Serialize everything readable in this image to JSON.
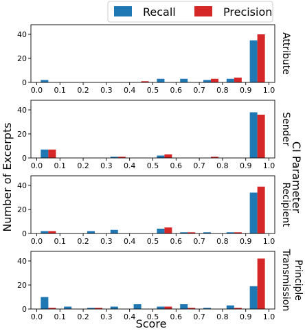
{
  "legend": {
    "items": [
      {
        "label": "Recall",
        "color": "#1f77b4"
      },
      {
        "label": "Precision",
        "color": "#d62728"
      }
    ]
  },
  "figure": {
    "ylabel": "Number of Excerpts",
    "xlabel": "Score",
    "right_label": "CI Parameter"
  },
  "chart_data": [
    {
      "type": "bar",
      "title": "Attribute",
      "title_lines": [
        "Attribute"
      ],
      "x": [
        0.05,
        0.15,
        0.25,
        0.35,
        0.45,
        0.55,
        0.65,
        0.75,
        0.85,
        0.95
      ],
      "series": [
        {
          "name": "Recall",
          "values": [
            2,
            0,
            0,
            0,
            0,
            3,
            3,
            2,
            3,
            35
          ]
        },
        {
          "name": "Precision",
          "values": [
            0,
            0,
            0,
            0,
            1,
            0,
            0,
            3,
            4,
            40
          ]
        }
      ],
      "xticks": [
        "0.0",
        "0.1",
        "0.2",
        "0.3",
        "0.4",
        "0.5",
        "0.6",
        "0.7",
        "0.8",
        "0.9",
        "1.0"
      ],
      "yticks": [
        0,
        20,
        40
      ],
      "xlim": [
        -0.025,
        1.025
      ],
      "ylim": [
        0,
        48
      ]
    },
    {
      "type": "bar",
      "title": "Sender",
      "title_lines": [
        "Sender"
      ],
      "x": [
        0.05,
        0.15,
        0.25,
        0.35,
        0.45,
        0.55,
        0.65,
        0.75,
        0.85,
        0.95
      ],
      "series": [
        {
          "name": "Recall",
          "values": [
            7,
            0,
            0,
            1,
            0,
            2,
            0,
            0,
            0,
            38
          ]
        },
        {
          "name": "Precision",
          "values": [
            7,
            0,
            0,
            1,
            0,
            3,
            0,
            1,
            0,
            36
          ]
        }
      ],
      "xticks": [
        "0.0",
        "0.1",
        "0.2",
        "0.3",
        "0.4",
        "0.5",
        "0.6",
        "0.7",
        "0.8",
        "0.9",
        "1.0"
      ],
      "yticks": [
        0,
        20,
        40
      ],
      "xlim": [
        -0.025,
        1.025
      ],
      "ylim": [
        0,
        48
      ]
    },
    {
      "type": "bar",
      "title": "Recipient",
      "title_lines": [
        "Recipient"
      ],
      "x": [
        0.05,
        0.15,
        0.25,
        0.35,
        0.45,
        0.55,
        0.65,
        0.75,
        0.85,
        0.95
      ],
      "series": [
        {
          "name": "Recall",
          "values": [
            2,
            0,
            2,
            3,
            0,
            4,
            1,
            1,
            1,
            34
          ]
        },
        {
          "name": "Precision",
          "values": [
            2,
            0,
            0,
            0,
            0,
            5,
            1,
            0,
            1,
            39
          ]
        }
      ],
      "xticks": [
        "0.0",
        "0.1",
        "0.2",
        "0.3",
        "0.4",
        "0.5",
        "0.6",
        "0.7",
        "0.8",
        "0.9",
        "1.0"
      ],
      "yticks": [
        0,
        20,
        40
      ],
      "xlim": [
        -0.025,
        1.025
      ],
      "ylim": [
        0,
        48
      ]
    },
    {
      "type": "bar",
      "title": "Transmission Principle",
      "title_lines": [
        "Transmission",
        "Principle"
      ],
      "x": [
        0.05,
        0.15,
        0.25,
        0.35,
        0.45,
        0.55,
        0.65,
        0.75,
        0.85,
        0.95
      ],
      "series": [
        {
          "name": "Recall",
          "values": [
            10,
            2,
            1,
            2,
            4,
            2,
            4,
            1,
            3,
            19
          ]
        },
        {
          "name": "Precision",
          "values": [
            1,
            0,
            1,
            0,
            0,
            2,
            1,
            0,
            1,
            42
          ]
        }
      ],
      "xticks": [
        "0.0",
        "0.1",
        "0.2",
        "0.3",
        "0.4",
        "0.5",
        "0.6",
        "0.7",
        "0.8",
        "0.9",
        "1.0"
      ],
      "yticks": [
        0,
        20,
        40
      ],
      "xlim": [
        -0.025,
        1.025
      ],
      "ylim": [
        0,
        48
      ]
    }
  ]
}
